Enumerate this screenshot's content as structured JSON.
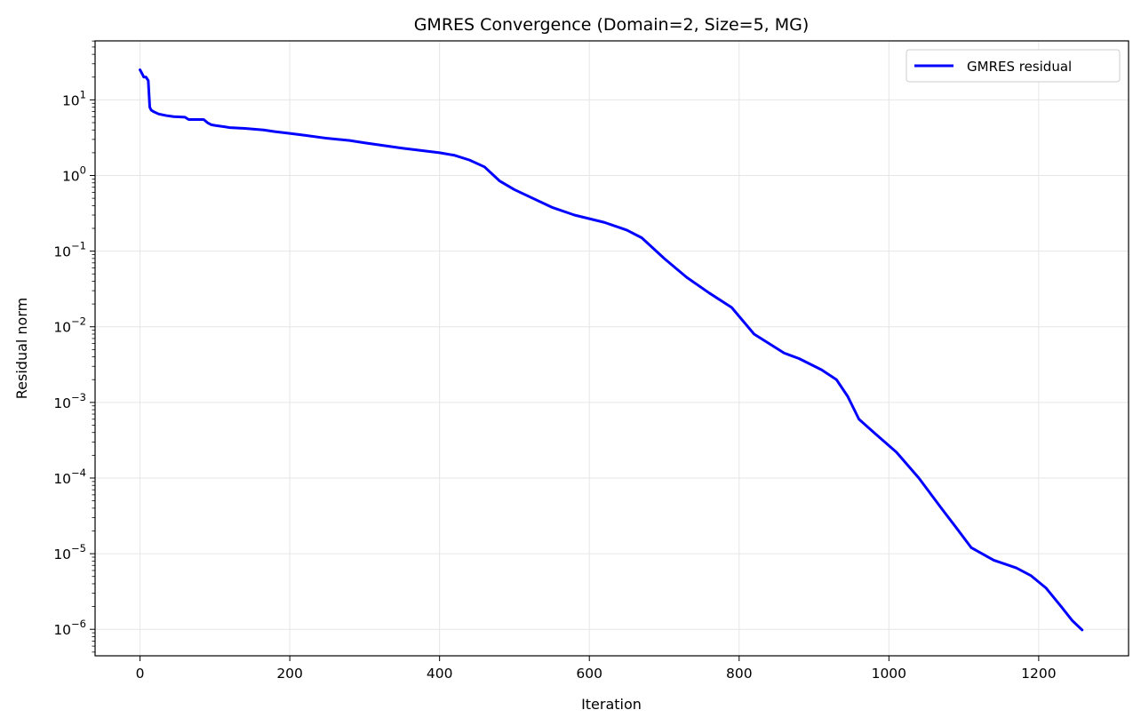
{
  "chart_data": {
    "type": "line",
    "title": "GMRES Convergence (Domain=2, Size=5, MG)",
    "xlabel": "Iteration",
    "ylabel": "Residual norm",
    "xlim": [
      -60,
      1320
    ],
    "ylim_log10": [
      -6.35,
      1.78
    ],
    "yscale": "log",
    "grid": true,
    "legend_position": "upper right",
    "x_ticks": [
      0,
      200,
      400,
      600,
      800,
      1000,
      1200
    ],
    "x_tick_labels": [
      "0",
      "200",
      "400",
      "600",
      "800",
      "1000",
      "1200"
    ],
    "y_tick_exponents": [
      1,
      0,
      -1,
      -2,
      -3,
      -4,
      -5,
      -6
    ],
    "y_tick_base": "10",
    "series": [
      {
        "name": "GMRES residual",
        "color": "#0000ff",
        "x": [
          0,
          3,
          5,
          8,
          11,
          13,
          15,
          18,
          25,
          35,
          45,
          60,
          65,
          85,
          90,
          95,
          100,
          120,
          140,
          165,
          180,
          200,
          220,
          250,
          280,
          300,
          350,
          400,
          420,
          440,
          460,
          480,
          500,
          550,
          580,
          620,
          650,
          670,
          700,
          730,
          760,
          790,
          820,
          860,
          880,
          910,
          930,
          945,
          960,
          980,
          1010,
          1040,
          1070,
          1090,
          1110,
          1140,
          1170,
          1190,
          1210,
          1230,
          1245,
          1258
        ],
        "y": [
          25,
          22,
          20,
          20,
          18,
          8,
          7.3,
          7,
          6.5,
          6.2,
          6.0,
          5.9,
          5.5,
          5.5,
          5.0,
          4.7,
          4.6,
          4.3,
          4.2,
          4.0,
          3.8,
          3.6,
          3.4,
          3.1,
          2.9,
          2.7,
          2.3,
          2.0,
          1.85,
          1.6,
          1.3,
          0.85,
          0.65,
          0.38,
          0.3,
          0.24,
          0.19,
          0.15,
          0.08,
          0.045,
          0.028,
          0.018,
          0.008,
          0.0045,
          0.0038,
          0.0027,
          0.002,
          0.0012,
          0.0006,
          0.0004,
          0.00022,
          0.0001,
          4e-05,
          2.2e-05,
          1.2e-05,
          8.2e-06,
          6.5e-06,
          5.1e-06,
          3.5e-06,
          2e-06,
          1.3e-06,
          9.8e-07
        ]
      }
    ]
  }
}
